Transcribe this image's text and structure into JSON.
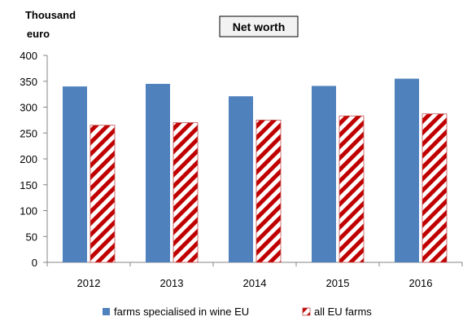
{
  "chart_data": {
    "type": "bar",
    "title": "Net worth",
    "ylabel_line1": "Thousand",
    "ylabel_line2": "euro",
    "categories": [
      "2012",
      "2013",
      "2014",
      "2015",
      "2016"
    ],
    "ylim": [
      0,
      400
    ],
    "yticks": [
      0,
      50,
      100,
      150,
      200,
      250,
      300,
      350,
      400
    ],
    "series": [
      {
        "name": "farms specialised in wine EU",
        "values": [
          340,
          345,
          321,
          341,
          355
        ],
        "color": "#4f81bd",
        "pattern": "solid"
      },
      {
        "name": "all EU farms",
        "values": [
          265,
          270,
          275,
          283,
          287
        ],
        "color": "#c0504d",
        "pattern": "diagonal-stripes-red-white"
      }
    ],
    "legend_position": "bottom",
    "grid": false
  }
}
